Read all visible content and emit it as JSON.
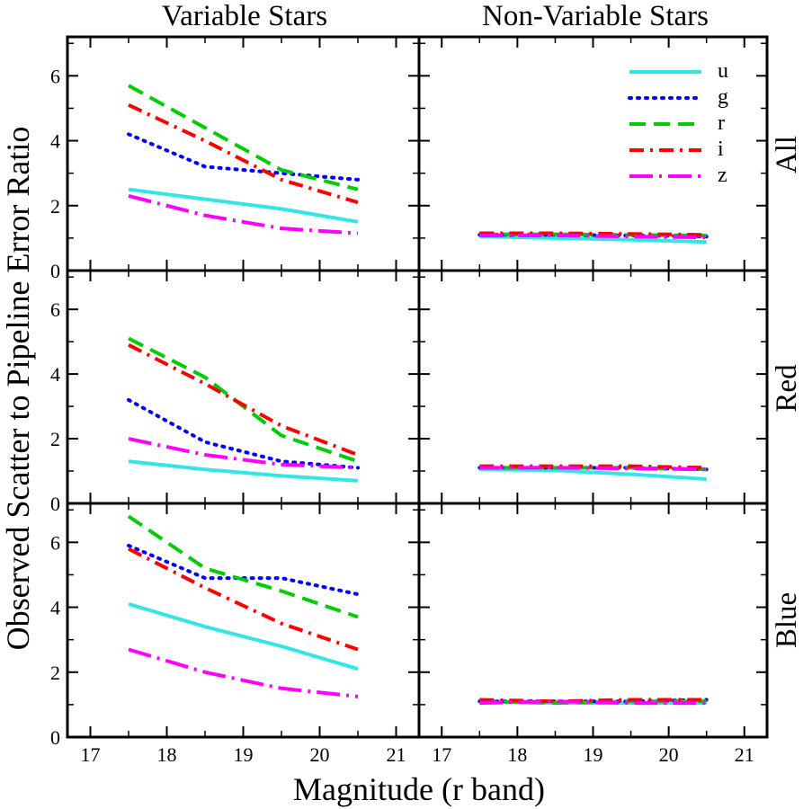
{
  "chart_data": {
    "type": "line",
    "layout": "grid 3 rows x 2 columns",
    "xlabel": "Magnitude (r band)",
    "ylabel": "Observed Scatter to Pipeline Error Ratio",
    "xlim": [
      16.7,
      21.3
    ],
    "ylim": [
      0,
      7.2
    ],
    "xticks": [
      "17",
      "18",
      "19",
      "20",
      "21"
    ],
    "yticks": [
      "0",
      "2",
      "4",
      "6"
    ],
    "x": [
      17.5,
      18.5,
      19.5,
      20.5
    ],
    "column_titles": [
      "Variable Stars",
      "Non-Variable Stars"
    ],
    "row_labels": [
      "All",
      "Red",
      "Blue"
    ],
    "legend": {
      "location": "top-right of upper-right panel",
      "entries": [
        "u",
        "g",
        "r",
        "i",
        "z"
      ]
    },
    "series_styles": [
      {
        "name": "u",
        "color": "#33e6e6",
        "dash": "solid"
      },
      {
        "name": "g",
        "color": "#0000ff",
        "dash": "dotted"
      },
      {
        "name": "r",
        "color": "#00cc00",
        "dash": "dashed"
      },
      {
        "name": "i",
        "color": "#ff0000",
        "dash": "dash-dot"
      },
      {
        "name": "z",
        "color": "#ff00ff",
        "dash": "long-dash-dot"
      }
    ],
    "panels": [
      {
        "row": "All",
        "column": "Variable Stars",
        "series": [
          {
            "name": "u",
            "values": [
              2.5,
              2.2,
              1.9,
              1.5
            ]
          },
          {
            "name": "g",
            "values": [
              4.2,
              3.2,
              3.0,
              2.8
            ]
          },
          {
            "name": "r",
            "values": [
              5.7,
              4.4,
              3.1,
              2.5
            ]
          },
          {
            "name": "i",
            "values": [
              5.1,
              4.0,
              2.8,
              2.1
            ]
          },
          {
            "name": "z",
            "values": [
              2.3,
              1.7,
              1.3,
              1.15
            ]
          }
        ]
      },
      {
        "row": "All",
        "column": "Non-Variable Stars",
        "series": [
          {
            "name": "u",
            "values": [
              1.05,
              1.0,
              0.95,
              0.88
            ]
          },
          {
            "name": "g",
            "values": [
              1.1,
              1.1,
              1.08,
              1.05
            ]
          },
          {
            "name": "r",
            "values": [
              1.12,
              1.12,
              1.1,
              1.08
            ]
          },
          {
            "name": "i",
            "values": [
              1.15,
              1.15,
              1.13,
              1.1
            ]
          },
          {
            "name": "z",
            "values": [
              1.08,
              1.08,
              1.05,
              1.02
            ]
          }
        ]
      },
      {
        "row": "Red",
        "column": "Variable Stars",
        "series": [
          {
            "name": "u",
            "values": [
              1.3,
              1.05,
              0.85,
              0.7
            ]
          },
          {
            "name": "g",
            "values": [
              3.2,
              1.9,
              1.3,
              1.1
            ]
          },
          {
            "name": "r",
            "values": [
              5.1,
              3.9,
              2.1,
              1.3
            ]
          },
          {
            "name": "i",
            "values": [
              4.9,
              3.7,
              2.4,
              1.5
            ]
          },
          {
            "name": "z",
            "values": [
              2.0,
              1.5,
              1.2,
              1.1
            ]
          }
        ]
      },
      {
        "row": "Red",
        "column": "Non-Variable Stars",
        "series": [
          {
            "name": "u",
            "values": [
              1.05,
              1.02,
              0.9,
              0.75
            ]
          },
          {
            "name": "g",
            "values": [
              1.1,
              1.1,
              1.1,
              1.05
            ]
          },
          {
            "name": "r",
            "values": [
              1.1,
              1.1,
              1.1,
              1.05
            ]
          },
          {
            "name": "i",
            "values": [
              1.15,
              1.15,
              1.15,
              1.1
            ]
          },
          {
            "name": "z",
            "values": [
              1.1,
              1.1,
              1.08,
              1.05
            ]
          }
        ]
      },
      {
        "row": "Blue",
        "column": "Variable Stars",
        "series": [
          {
            "name": "u",
            "values": [
              4.1,
              3.4,
              2.8,
              2.1
            ]
          },
          {
            "name": "g",
            "values": [
              5.9,
              4.9,
              4.9,
              4.4
            ]
          },
          {
            "name": "r",
            "values": [
              6.8,
              5.2,
              4.5,
              3.7
            ]
          },
          {
            "name": "i",
            "values": [
              5.8,
              4.6,
              3.5,
              2.7
            ]
          },
          {
            "name": "z",
            "values": [
              2.7,
              2.0,
              1.5,
              1.25
            ]
          }
        ]
      },
      {
        "row": "Blue",
        "column": "Non-Variable Stars",
        "series": [
          {
            "name": "u",
            "values": [
              1.1,
              1.05,
              1.05,
              1.05
            ]
          },
          {
            "name": "g",
            "values": [
              1.1,
              1.1,
              1.1,
              1.15
            ]
          },
          {
            "name": "r",
            "values": [
              1.1,
              1.05,
              1.1,
              1.1
            ]
          },
          {
            "name": "i",
            "values": [
              1.15,
              1.1,
              1.15,
              1.15
            ]
          },
          {
            "name": "z",
            "values": [
              1.05,
              1.1,
              1.05,
              1.05
            ]
          }
        ]
      }
    ]
  }
}
